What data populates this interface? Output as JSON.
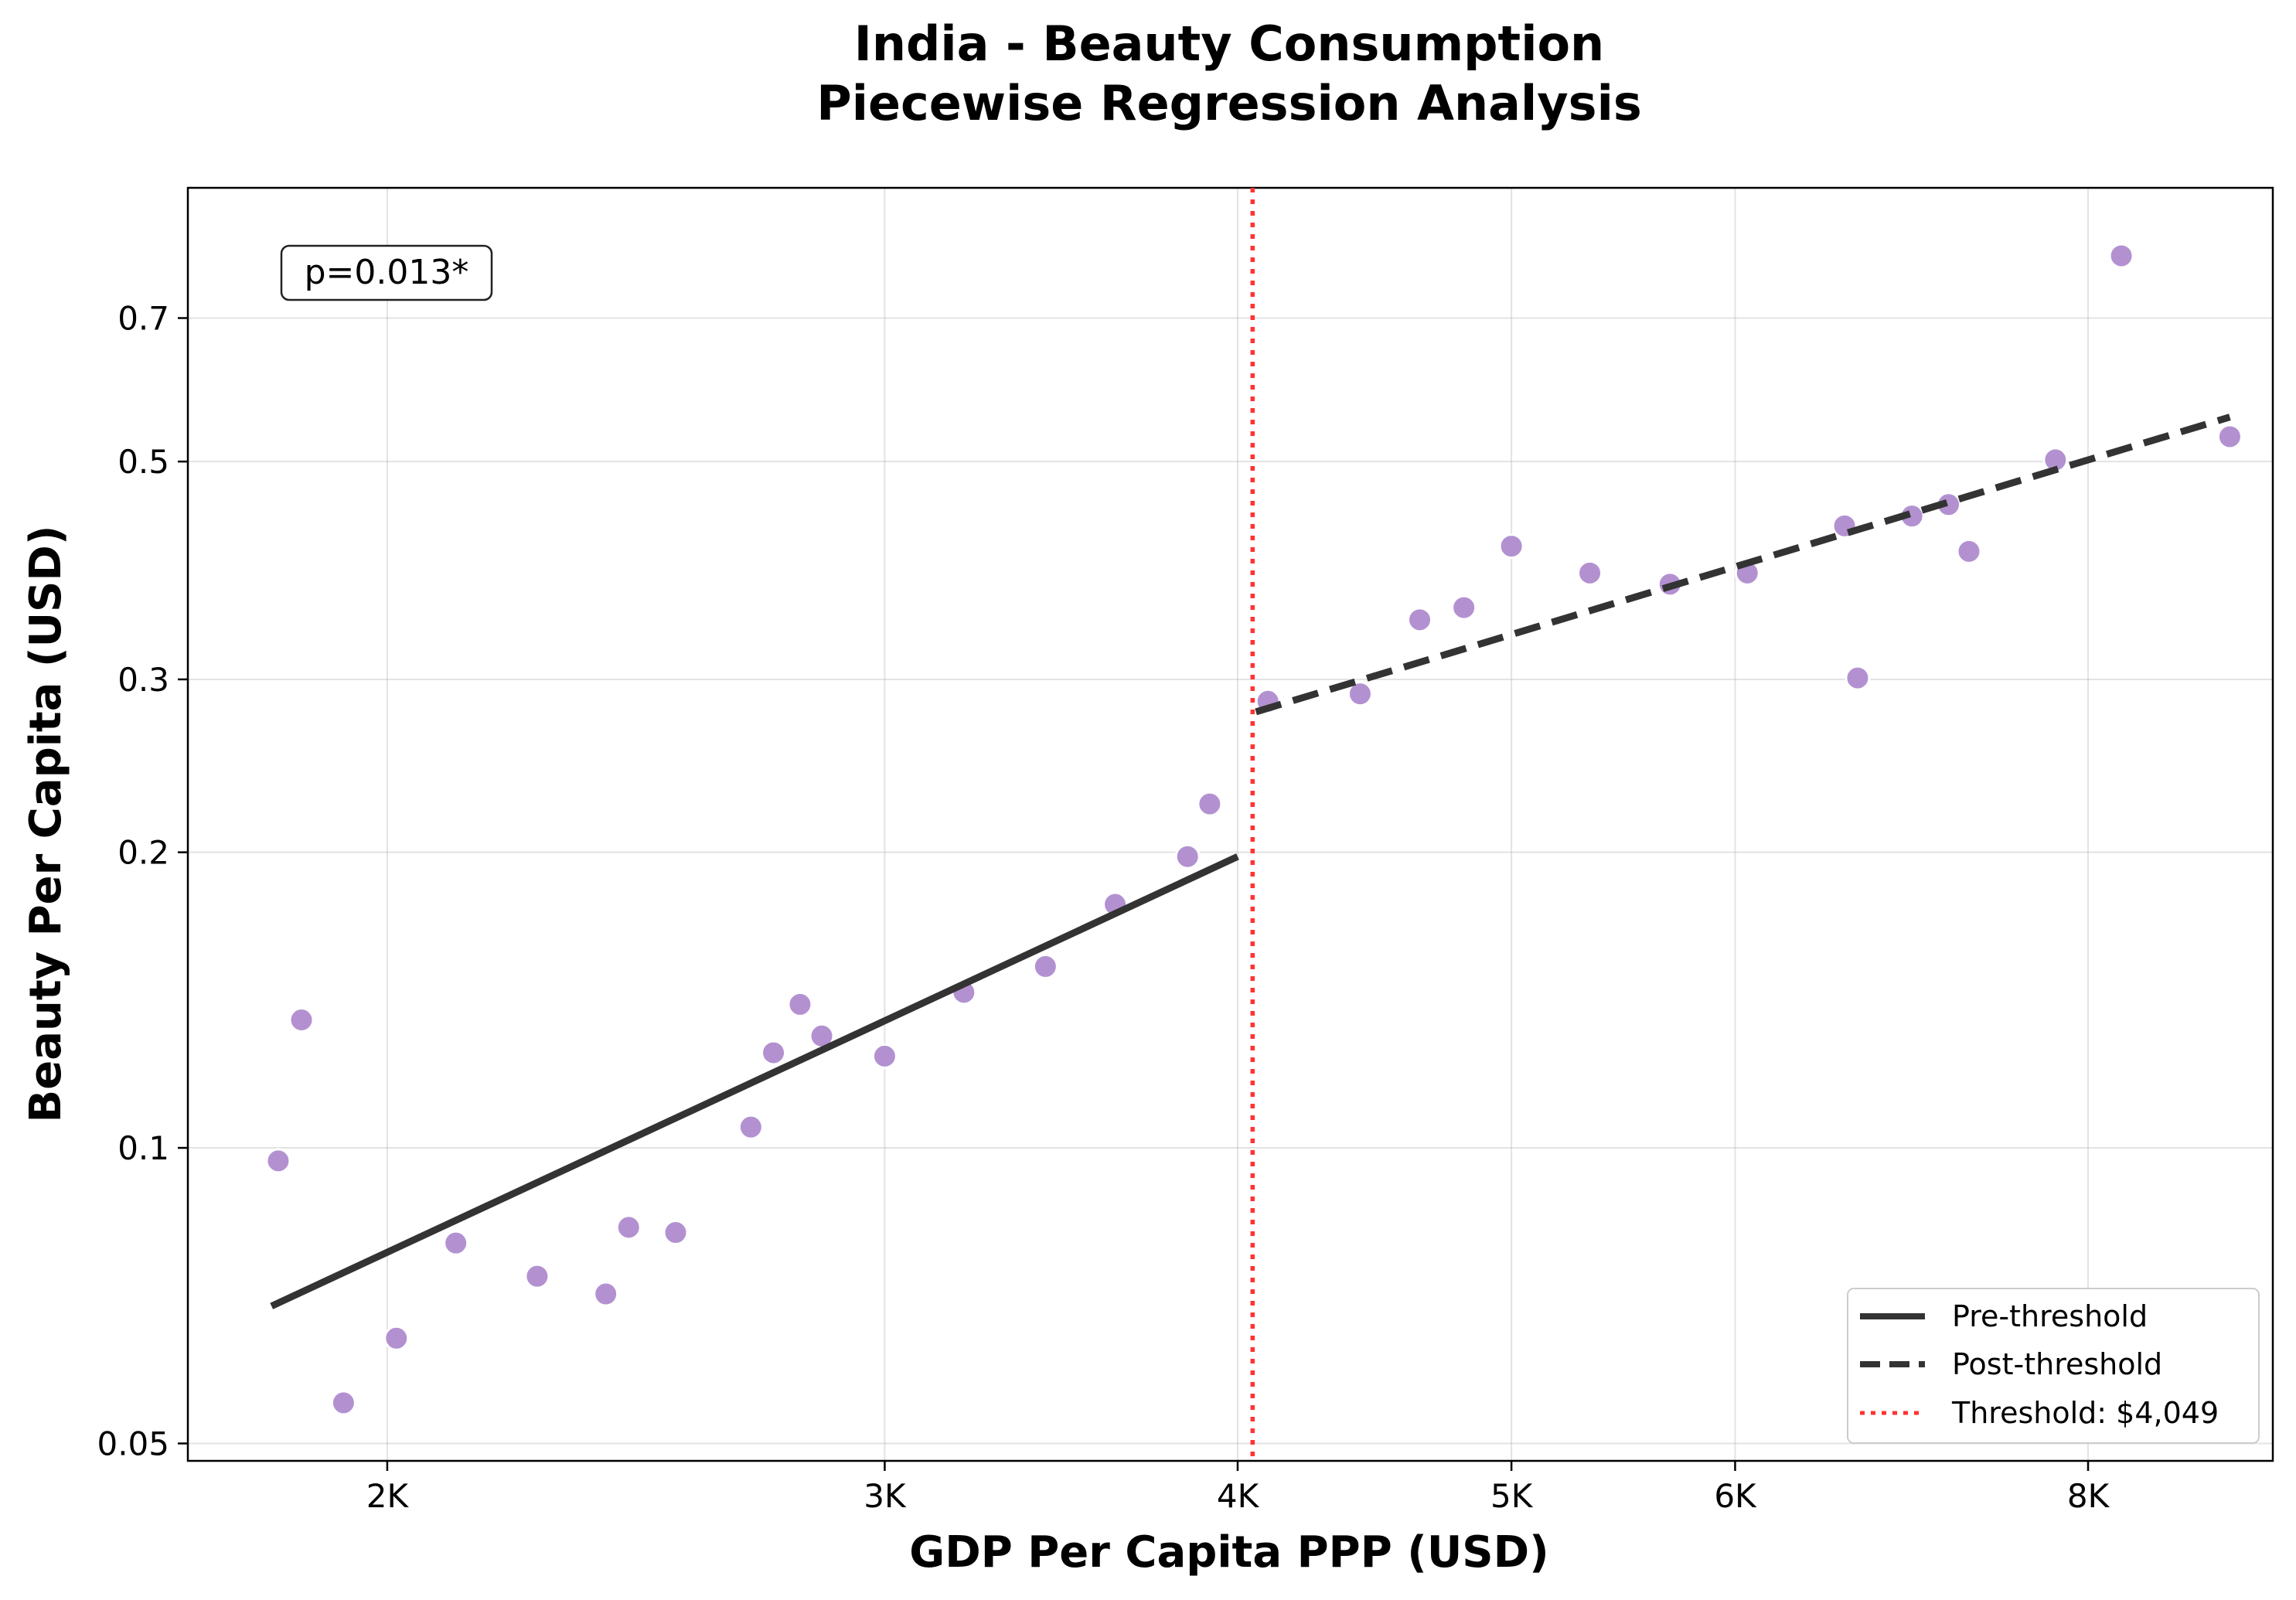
{
  "chart_data": {
    "type": "scatter",
    "title_lines": [
      "India - Beauty Consumption",
      "Piecewise Regression Analysis"
    ],
    "xlabel": "GDP Per Capita PPP (USD)",
    "ylabel": "Beauty Per Capita (USD)",
    "x_scale": "log",
    "y_scale": "log",
    "xlim": [
      1700,
      9300
    ],
    "ylim": [
      0.048,
      0.95
    ],
    "grid": true,
    "legend_position": "lower-right",
    "xticks": [
      {
        "value": 2000,
        "label": "2K"
      },
      {
        "value": 3000,
        "label": "3K"
      },
      {
        "value": 4000,
        "label": "4K"
      },
      {
        "value": 5000,
        "label": "5K"
      },
      {
        "value": 6000,
        "label": "6K"
      },
      {
        "value": 8000,
        "label": "8K"
      }
    ],
    "yticks": [
      {
        "value": 0.05,
        "label": "0.05"
      },
      {
        "value": 0.1,
        "label": "0.1"
      },
      {
        "value": 0.2,
        "label": "0.2"
      },
      {
        "value": 0.3,
        "label": "0.3"
      },
      {
        "value": 0.5,
        "label": "0.5"
      },
      {
        "value": 0.7,
        "label": "0.7"
      }
    ],
    "points": [
      {
        "x": 1830,
        "y": 0.097
      },
      {
        "x": 1865,
        "y": 0.135
      },
      {
        "x": 1930,
        "y": 0.055
      },
      {
        "x": 2015,
        "y": 0.064
      },
      {
        "x": 2115,
        "y": 0.08
      },
      {
        "x": 2260,
        "y": 0.074
      },
      {
        "x": 2390,
        "y": 0.071
      },
      {
        "x": 2435,
        "y": 0.083
      },
      {
        "x": 2530,
        "y": 0.082
      },
      {
        "x": 2690,
        "y": 0.105
      },
      {
        "x": 2740,
        "y": 0.125
      },
      {
        "x": 2800,
        "y": 0.14
      },
      {
        "x": 2850,
        "y": 0.13
      },
      {
        "x": 3000,
        "y": 0.124
      },
      {
        "x": 3200,
        "y": 0.144
      },
      {
        "x": 3420,
        "y": 0.153
      },
      {
        "x": 3620,
        "y": 0.177
      },
      {
        "x": 3840,
        "y": 0.198
      },
      {
        "x": 3910,
        "y": 0.224
      },
      {
        "x": 4100,
        "y": 0.285
      },
      {
        "x": 4420,
        "y": 0.29
      },
      {
        "x": 4640,
        "y": 0.345
      },
      {
        "x": 4810,
        "y": 0.355
      },
      {
        "x": 5000,
        "y": 0.41
      },
      {
        "x": 5330,
        "y": 0.385
      },
      {
        "x": 5690,
        "y": 0.375
      },
      {
        "x": 6060,
        "y": 0.385
      },
      {
        "x": 6560,
        "y": 0.43
      },
      {
        "x": 6630,
        "y": 0.301
      },
      {
        "x": 6930,
        "y": 0.44
      },
      {
        "x": 7140,
        "y": 0.452
      },
      {
        "x": 7260,
        "y": 0.405
      },
      {
        "x": 7790,
        "y": 0.502
      },
      {
        "x": 8220,
        "y": 0.81
      },
      {
        "x": 8980,
        "y": 0.53
      }
    ],
    "point_color": "#b391d1",
    "fit_color": "#333333",
    "threshold_color": "#ff3333",
    "pre_threshold": {
      "label": "Pre-threshold",
      "x": [
        1820,
        4000
      ],
      "y": [
        0.069,
        0.198
      ]
    },
    "post_threshold": {
      "label": "Post-threshold",
      "x": [
        4060,
        8980
      ],
      "y": [
        0.278,
        0.555
      ]
    },
    "threshold": {
      "label": "Threshold: $4,049",
      "x": 4049
    },
    "annotation": "p=0.013*"
  }
}
